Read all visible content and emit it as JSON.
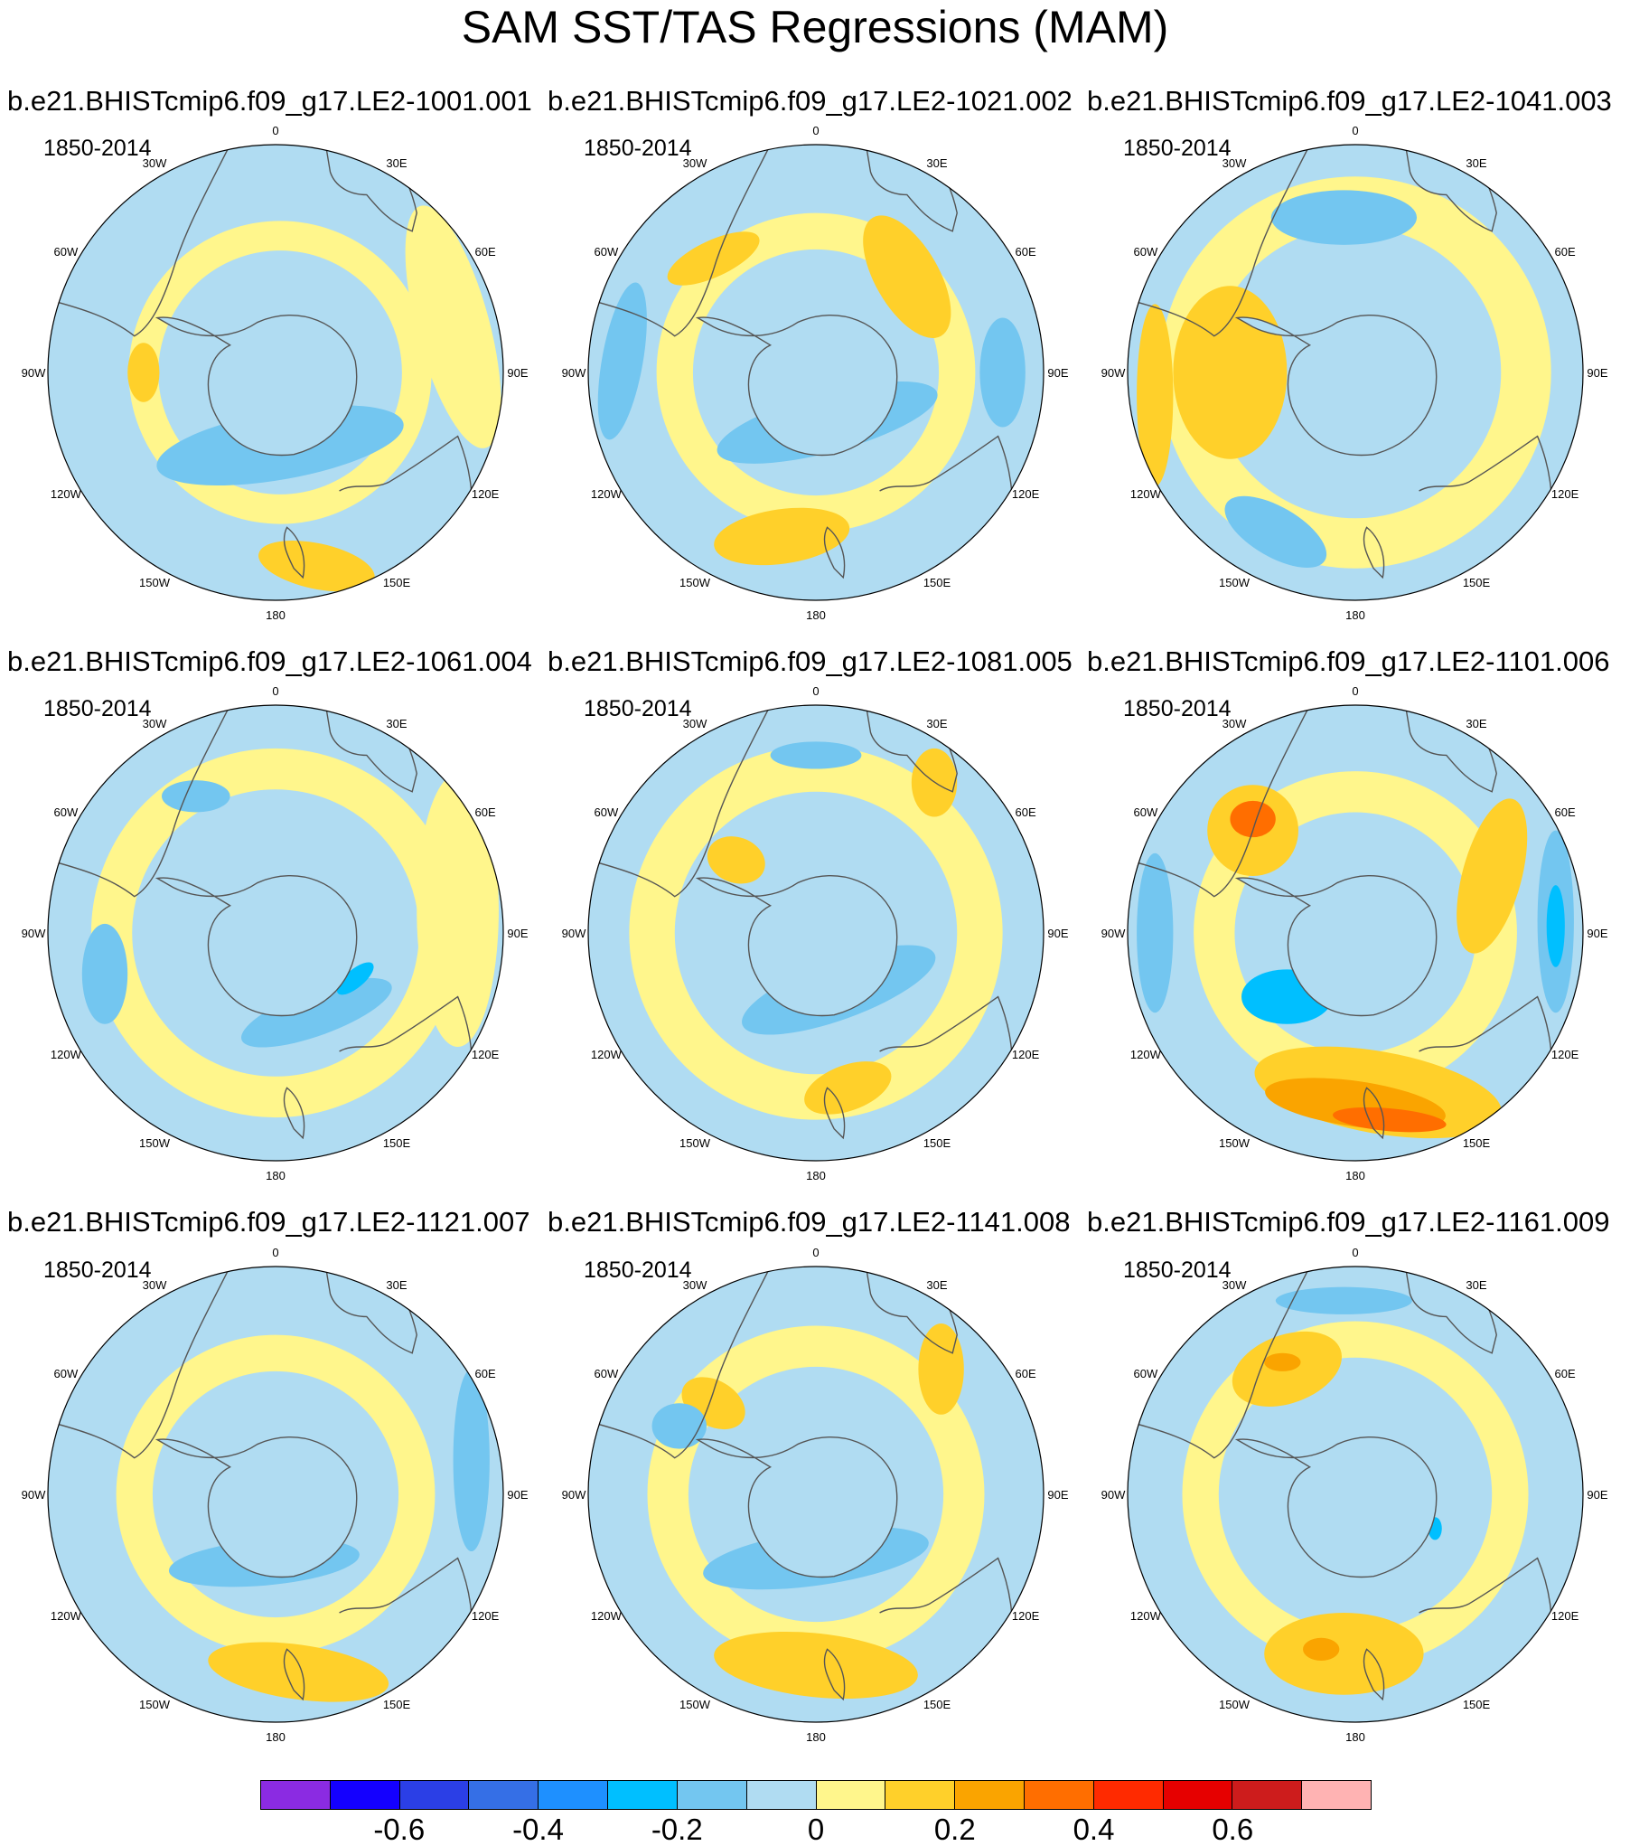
{
  "title": "SAM SST/TAS Regressions (MAM)",
  "chart_data": {
    "type": "heatmap",
    "projection": "south-polar-stereographic",
    "variable": "SAM SST/TAS regression",
    "season": "MAM",
    "longitude_labels": [
      "0",
      "30E",
      "60E",
      "90E",
      "120E",
      "150E",
      "180",
      "150W",
      "120W",
      "90W",
      "60W",
      "30W"
    ],
    "colorbar": {
      "levels": [
        -0.7,
        -0.6,
        -0.5,
        -0.4,
        -0.3,
        -0.2,
        -0.1,
        0,
        0.1,
        0.2,
        0.3,
        0.4,
        0.5,
        0.6,
        0.7
      ],
      "tick_labels": [
        "-0.6",
        "-0.4",
        "-0.2",
        "0",
        "0.2",
        "0.4",
        "0.6"
      ],
      "tick_values": [
        -0.6,
        -0.4,
        -0.2,
        0,
        0.2,
        0.4,
        0.6
      ],
      "colors": [
        "#8B2BE2",
        "#1400FF",
        "#2B3FE6",
        "#356FE6",
        "#1E90FF",
        "#00BFFF",
        "#73C6F0",
        "#B0DCF2",
        "#FFF68C",
        "#FFD02A",
        "#FAA400",
        "#FF6E00",
        "#FF2A00",
        "#E60000",
        "#CD1C1C",
        "#FFB3B3"
      ]
    },
    "panels": [
      {
        "title": "b.e21.BHISTcmip6.f09_g17.LE2-1001.001",
        "period": "1850-2014",
        "features": [
          {
            "level": 8,
            "shape": "ring",
            "cx": 0.02,
            "cy": 0.0,
            "r": 0.6,
            "w": 0.13
          },
          {
            "level": 6,
            "shape": "blob",
            "cx": 0.02,
            "cy": 0.32,
            "rx": 0.55,
            "ry": 0.15,
            "rot": -10
          },
          {
            "level": 9,
            "shape": "blob",
            "cx": 0.18,
            "cy": 0.85,
            "rx": 0.26,
            "ry": 0.1,
            "rot": 12
          },
          {
            "level": 9,
            "shape": "blob",
            "cx": -0.58,
            "cy": 0.0,
            "rx": 0.07,
            "ry": 0.13,
            "rot": 0
          },
          {
            "level": 8,
            "shape": "blob",
            "cx": 0.78,
            "cy": -0.2,
            "rx": 0.16,
            "ry": 0.55,
            "rot": -15
          }
        ]
      },
      {
        "title": "b.e21.BHISTcmip6.f09_g17.LE2-1021.002",
        "period": "1850-2014",
        "features": [
          {
            "level": 8,
            "shape": "ring",
            "cx": 0.0,
            "cy": 0.0,
            "r": 0.62,
            "w": 0.16
          },
          {
            "level": 9,
            "shape": "blob",
            "cx": -0.15,
            "cy": 0.72,
            "rx": 0.3,
            "ry": 0.12,
            "rot": -8
          },
          {
            "level": 9,
            "shape": "blob",
            "cx": 0.4,
            "cy": -0.42,
            "rx": 0.14,
            "ry": 0.3,
            "rot": -30
          },
          {
            "level": 9,
            "shape": "blob",
            "cx": -0.45,
            "cy": -0.5,
            "rx": 0.22,
            "ry": 0.08,
            "rot": -25
          },
          {
            "level": 6,
            "shape": "blob",
            "cx": 0.05,
            "cy": 0.22,
            "rx": 0.5,
            "ry": 0.13,
            "rot": -15
          },
          {
            "level": 6,
            "shape": "blob",
            "cx": 0.82,
            "cy": 0.0,
            "rx": 0.1,
            "ry": 0.24,
            "rot": 0
          },
          {
            "level": 6,
            "shape": "blob",
            "cx": -0.85,
            "cy": -0.05,
            "rx": 0.09,
            "ry": 0.35,
            "rot": 10
          }
        ]
      },
      {
        "title": "b.e21.BHISTcmip6.f09_g17.LE2-1041.003",
        "period": "1850-2014",
        "features": [
          {
            "level": 8,
            "shape": "ring",
            "cx": 0.0,
            "cy": 0.0,
            "r": 0.75,
            "w": 0.22
          },
          {
            "level": 9,
            "shape": "blob",
            "cx": -0.55,
            "cy": 0.0,
            "rx": 0.25,
            "ry": 0.38,
            "rot": 0
          },
          {
            "level": 9,
            "shape": "blob",
            "cx": -0.88,
            "cy": 0.1,
            "rx": 0.08,
            "ry": 0.4,
            "rot": 0
          },
          {
            "level": 6,
            "shape": "blob",
            "cx": -0.05,
            "cy": -0.68,
            "rx": 0.32,
            "ry": 0.12,
            "rot": 0
          },
          {
            "level": 6,
            "shape": "blob",
            "cx": -0.35,
            "cy": 0.7,
            "rx": 0.25,
            "ry": 0.11,
            "rot": 30
          }
        ]
      },
      {
        "title": "b.e21.BHISTcmip6.f09_g17.LE2-1061.004",
        "period": "1850-2014",
        "features": [
          {
            "level": 8,
            "shape": "ring",
            "cx": 0.0,
            "cy": 0.0,
            "r": 0.72,
            "w": 0.18
          },
          {
            "level": 8,
            "shape": "blob",
            "cx": 0.8,
            "cy": -0.1,
            "rx": 0.18,
            "ry": 0.6,
            "rot": 0
          },
          {
            "level": 6,
            "shape": "blob",
            "cx": -0.75,
            "cy": 0.18,
            "rx": 0.1,
            "ry": 0.22,
            "rot": 0
          },
          {
            "level": 6,
            "shape": "blob",
            "cx": 0.18,
            "cy": 0.35,
            "rx": 0.35,
            "ry": 0.1,
            "rot": -20
          },
          {
            "level": 6,
            "shape": "blob",
            "cx": -0.35,
            "cy": -0.6,
            "rx": 0.15,
            "ry": 0.07,
            "rot": 0
          },
          {
            "level": 5,
            "shape": "blob",
            "cx": 0.35,
            "cy": 0.2,
            "rx": 0.1,
            "ry": 0.04,
            "rot": -40
          }
        ]
      },
      {
        "title": "b.e21.BHISTcmip6.f09_g17.LE2-1081.005",
        "period": "1850-2014",
        "features": [
          {
            "level": 8,
            "shape": "ring",
            "cx": 0.0,
            "cy": 0.0,
            "r": 0.72,
            "w": 0.2
          },
          {
            "level": 9,
            "shape": "blob",
            "cx": 0.14,
            "cy": 0.68,
            "rx": 0.2,
            "ry": 0.1,
            "rot": -20
          },
          {
            "level": 9,
            "shape": "blob",
            "cx": -0.35,
            "cy": -0.32,
            "rx": 0.13,
            "ry": 0.1,
            "rot": 20
          },
          {
            "level": 9,
            "shape": "blob",
            "cx": 0.52,
            "cy": -0.66,
            "rx": 0.1,
            "ry": 0.15,
            "rot": 0
          },
          {
            "level": 6,
            "shape": "blob",
            "cx": 0.1,
            "cy": 0.25,
            "rx": 0.45,
            "ry": 0.13,
            "rot": -20
          },
          {
            "level": 6,
            "shape": "blob",
            "cx": 0.0,
            "cy": -0.78,
            "rx": 0.2,
            "ry": 0.06,
            "rot": 0
          }
        ]
      },
      {
        "title": "b.e21.BHISTcmip6.f09_g17.LE2-1101.006",
        "period": "1850-2014",
        "features": [
          {
            "level": 8,
            "shape": "ring",
            "cx": 0.0,
            "cy": 0.0,
            "r": 0.62,
            "w": 0.18
          },
          {
            "level": 9,
            "shape": "blob",
            "cx": 0.1,
            "cy": 0.7,
            "rx": 0.55,
            "ry": 0.18,
            "rot": 10
          },
          {
            "level": 10,
            "shape": "blob",
            "cx": 0.0,
            "cy": 0.75,
            "rx": 0.4,
            "ry": 0.1,
            "rot": 8
          },
          {
            "level": 11,
            "shape": "blob",
            "cx": 0.15,
            "cy": 0.82,
            "rx": 0.25,
            "ry": 0.05,
            "rot": 5
          },
          {
            "level": 9,
            "shape": "blob",
            "cx": -0.45,
            "cy": -0.45,
            "rx": 0.2,
            "ry": 0.2,
            "rot": 0
          },
          {
            "level": 11,
            "shape": "blob",
            "cx": -0.45,
            "cy": -0.5,
            "rx": 0.1,
            "ry": 0.08,
            "rot": 0
          },
          {
            "level": 9,
            "shape": "blob",
            "cx": 0.6,
            "cy": -0.25,
            "rx": 0.13,
            "ry": 0.35,
            "rot": 15
          },
          {
            "level": 5,
            "shape": "blob",
            "cx": -0.3,
            "cy": 0.28,
            "rx": 0.2,
            "ry": 0.12,
            "rot": 0
          },
          {
            "level": 6,
            "shape": "blob",
            "cx": 0.88,
            "cy": -0.05,
            "rx": 0.08,
            "ry": 0.4,
            "rot": 0
          },
          {
            "level": 5,
            "shape": "blob",
            "cx": 0.88,
            "cy": -0.03,
            "rx": 0.04,
            "ry": 0.18,
            "rot": 0
          },
          {
            "level": 6,
            "shape": "blob",
            "cx": -0.88,
            "cy": 0.0,
            "rx": 0.08,
            "ry": 0.35,
            "rot": 0
          }
        ]
      },
      {
        "title": "b.e21.BHISTcmip6.f09_g17.LE2-1121.007",
        "period": "1850-2014",
        "features": [
          {
            "level": 8,
            "shape": "ring",
            "cx": 0.0,
            "cy": 0.0,
            "r": 0.62,
            "w": 0.16
          },
          {
            "level": 9,
            "shape": "blob",
            "cx": 0.1,
            "cy": 0.78,
            "rx": 0.4,
            "ry": 0.12,
            "rot": 8
          },
          {
            "level": 6,
            "shape": "blob",
            "cx": -0.05,
            "cy": 0.3,
            "rx": 0.42,
            "ry": 0.1,
            "rot": -5
          },
          {
            "level": 6,
            "shape": "blob",
            "cx": 0.86,
            "cy": -0.15,
            "rx": 0.08,
            "ry": 0.4,
            "rot": 0
          }
        ]
      },
      {
        "title": "b.e21.BHISTcmip6.f09_g17.LE2-1141.008",
        "period": "1850-2014",
        "features": [
          {
            "level": 8,
            "shape": "ring",
            "cx": 0.0,
            "cy": 0.0,
            "r": 0.65,
            "w": 0.18
          },
          {
            "level": 9,
            "shape": "blob",
            "cx": 0.0,
            "cy": 0.75,
            "rx": 0.45,
            "ry": 0.14,
            "rot": 6
          },
          {
            "level": 9,
            "shape": "blob",
            "cx": -0.45,
            "cy": -0.4,
            "rx": 0.15,
            "ry": 0.1,
            "rot": 30
          },
          {
            "level": 9,
            "shape": "blob",
            "cx": 0.55,
            "cy": -0.55,
            "rx": 0.1,
            "ry": 0.2,
            "rot": 0
          },
          {
            "level": 6,
            "shape": "blob",
            "cx": 0.0,
            "cy": 0.28,
            "rx": 0.5,
            "ry": 0.12,
            "rot": -8
          },
          {
            "level": 6,
            "shape": "blob",
            "cx": -0.6,
            "cy": -0.3,
            "rx": 0.12,
            "ry": 0.1,
            "rot": 0
          }
        ]
      },
      {
        "title": "b.e21.BHISTcmip6.f09_g17.LE2-1161.009",
        "period": "1850-2014",
        "features": [
          {
            "level": 8,
            "shape": "ring",
            "cx": 0.0,
            "cy": 0.0,
            "r": 0.68,
            "w": 0.16
          },
          {
            "level": 9,
            "shape": "blob",
            "cx": -0.05,
            "cy": 0.7,
            "rx": 0.35,
            "ry": 0.18,
            "rot": 0
          },
          {
            "level": 10,
            "shape": "blob",
            "cx": -0.15,
            "cy": 0.68,
            "rx": 0.08,
            "ry": 0.05,
            "rot": 0
          },
          {
            "level": 9,
            "shape": "blob",
            "cx": -0.3,
            "cy": -0.55,
            "rx": 0.25,
            "ry": 0.15,
            "rot": -20
          },
          {
            "level": 10,
            "shape": "blob",
            "cx": -0.32,
            "cy": -0.58,
            "rx": 0.08,
            "ry": 0.04,
            "rot": 0
          },
          {
            "level": 6,
            "shape": "blob",
            "cx": -0.05,
            "cy": -0.85,
            "rx": 0.3,
            "ry": 0.06,
            "rot": 0
          },
          {
            "level": 5,
            "shape": "blob",
            "cx": 0.35,
            "cy": 0.15,
            "rx": 0.03,
            "ry": 0.05,
            "rot": 0
          }
        ]
      }
    ]
  }
}
